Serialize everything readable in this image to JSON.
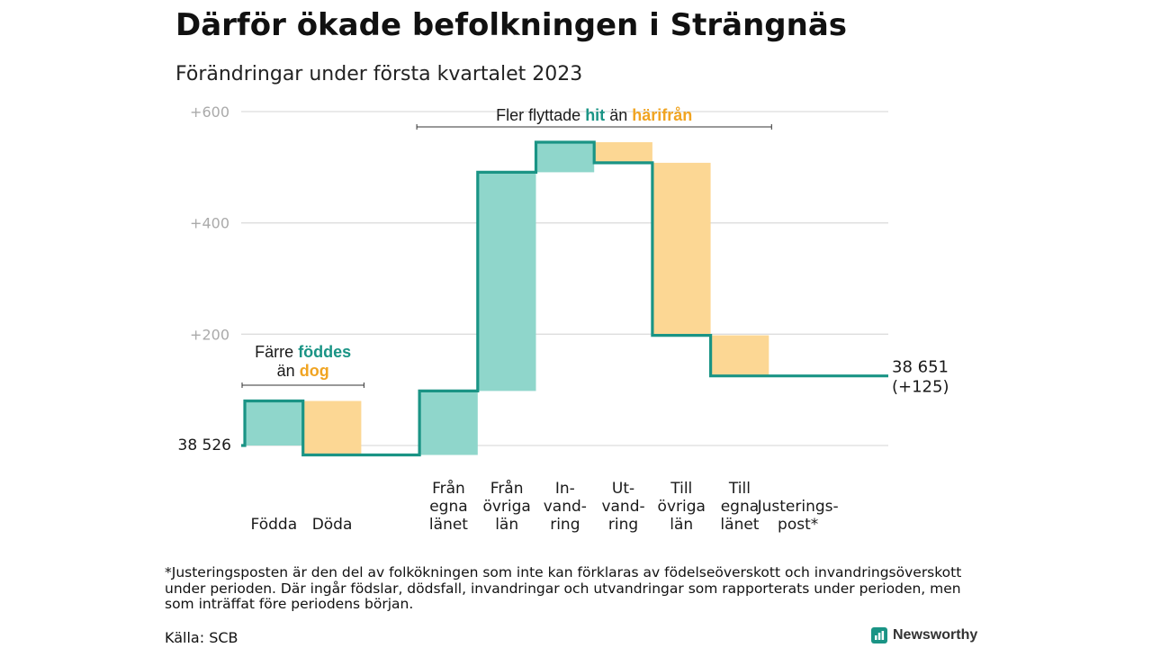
{
  "title": "Därför ökade befolkningen i Strängnäs",
  "subtitle": "Förändringar under första kvartalet 2023",
  "footnote": "*Justeringsposten är den del av folkökningen som inte kan förklaras av födelseöverskott och invandringsöverskott under perioden. Där ingår födslar, dödsfall, invandringar och utvandringar som rapporterats under perioden, men som inträffat före periodens början.",
  "source": "Källa: SCB",
  "brand": "Newsworthy",
  "colors": {
    "increase": "#8fd6cb",
    "decrease": "#fcd794",
    "step": "#1a9485",
    "hit": "#1a9485",
    "harifran": "#f0a422",
    "grid": "#dddddd",
    "axis_text": "#aaaaaa"
  },
  "chart_data": {
    "type": "waterfall",
    "ylim": [
      -20,
      620
    ],
    "yticks": [
      0,
      200,
      400,
      600
    ],
    "ytick_labels": [
      "",
      "+200",
      "+400",
      "+600"
    ],
    "start": {
      "value": 0,
      "label": "38 526"
    },
    "end": {
      "value": 125,
      "label": "38 651",
      "change_label": "(+125)"
    },
    "steps": [
      {
        "category": "Födda",
        "label_lines": [
          "Födda"
        ],
        "change": 80,
        "kind": "increase"
      },
      {
        "category": "Döda",
        "label_lines": [
          "Döda"
        ],
        "change": -97,
        "kind": "decrease"
      },
      {
        "category": "gap",
        "label_lines": [],
        "change": 0,
        "kind": "gap"
      },
      {
        "category": "Från egna länet",
        "label_lines": [
          "Från",
          "egna",
          "länet"
        ],
        "change": 115,
        "kind": "increase"
      },
      {
        "category": "Från övriga län",
        "label_lines": [
          "Från",
          "övriga",
          "län"
        ],
        "change": 393,
        "kind": "increase"
      },
      {
        "category": "Invandring",
        "label_lines": [
          "In-",
          "vand-",
          "ring"
        ],
        "change": 54,
        "kind": "increase"
      },
      {
        "category": "Utvandring",
        "label_lines": [
          "Ut-",
          "vand-",
          "ring"
        ],
        "change": -37,
        "kind": "decrease"
      },
      {
        "category": "Till övriga län",
        "label_lines": [
          "Till",
          "övriga",
          "län"
        ],
        "change": -310,
        "kind": "decrease"
      },
      {
        "category": "Till egna länet",
        "label_lines": [
          "Till",
          "egna",
          "länet"
        ],
        "change": -73,
        "kind": "decrease"
      },
      {
        "category": "Justeringspost*",
        "label_lines": [
          "Justerings-",
          "post*"
        ],
        "change": 0,
        "kind": "adjust"
      }
    ],
    "annotations": [
      {
        "id": "births",
        "lines": [
          [
            "Färre ",
            "föddes",
            ""
          ],
          [
            "än ",
            "dog",
            ""
          ]
        ],
        "span": [
          0,
          1
        ]
      },
      {
        "id": "moves",
        "lines": [
          [
            "Fler flyttade ",
            "hit",
            " än ",
            "härifrån"
          ]
        ],
        "span": [
          3,
          8
        ]
      }
    ],
    "annotation_text": {
      "births_line1_a": "Färre ",
      "births_line1_b": "föddes",
      "births_line2_a": "än ",
      "births_line2_b": "dog",
      "moves_a": "Fler flyttade ",
      "moves_b": "hit",
      "moves_c": " än ",
      "moves_d": "härifrån"
    }
  }
}
